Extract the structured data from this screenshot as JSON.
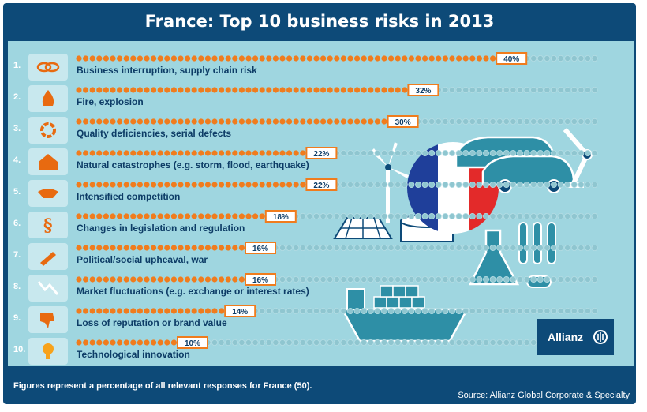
{
  "title": "France: Top 10 business risks in 2013",
  "footer": {
    "note": "Figures represent a percentage of all relevant responses for France (50).",
    "source": "Source: Allianz Global Corporate & Specialty"
  },
  "logo": {
    "text": "Allianz"
  },
  "colors": {
    "frame": "#0d4a78",
    "panel": "#9fd6e0",
    "filled_dot": "#f07c1d",
    "empty_dot": "#8fc6d0",
    "value_box": "#f07c1d"
  },
  "chart_data": {
    "type": "bar",
    "categories": [
      "Business interruption, supply chain risk",
      "Fire, explosion",
      "Quality deficiencies, serial defects",
      "Natural catastrophes (e.g. storm, flood, earthquake)",
      "Intensified competition",
      "Changes in legislation and regulation",
      "Political/social upheaval, war",
      "Market fluctuations (e.g. exchange or interest rates)",
      "Loss of reputation or brand value",
      "Technological innovation"
    ],
    "ranks": [
      "1.",
      "2.",
      "3.",
      "4.",
      "5.",
      "6.",
      "7.",
      "8.",
      "9.",
      "10."
    ],
    "values": [
      40,
      32,
      30,
      22,
      22,
      18,
      16,
      16,
      14,
      10
    ],
    "value_labels": [
      "40%",
      "32%",
      "30%",
      "22%",
      "22%",
      "18%",
      "16%",
      "16%",
      "14%",
      "10%"
    ],
    "icons": [
      "chain-link-icon",
      "fire-icon",
      "gear-defect-icon",
      "house-storm-icon",
      "handshake-icon",
      "paragraph-icon",
      "molotov-icon",
      "chart-down-icon",
      "thumbs-down-icon",
      "lightbulb-icon"
    ],
    "xlim": [
      0,
      50
    ],
    "xlabel": "",
    "ylabel": ""
  }
}
